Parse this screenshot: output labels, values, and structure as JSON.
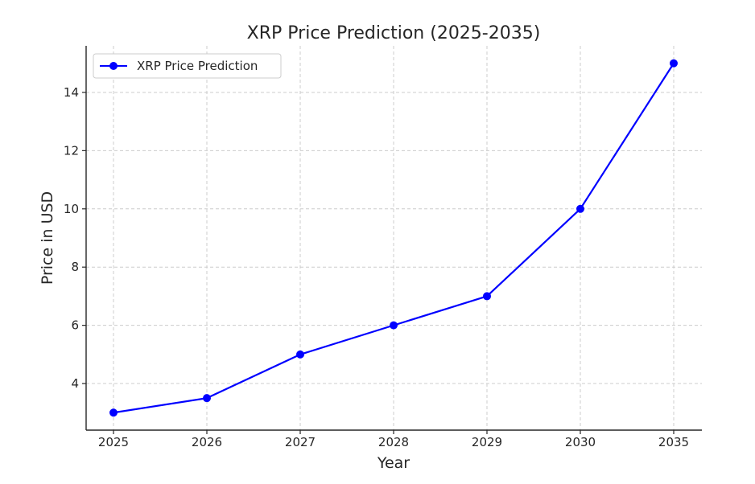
{
  "chart_data": {
    "type": "line",
    "title": "XRP Price Prediction (2025-2035)",
    "xlabel": "Year",
    "ylabel": "Price in USD",
    "categories": [
      "2025",
      "2026",
      "2027",
      "2028",
      "2029",
      "2030",
      "2035"
    ],
    "series": [
      {
        "name": "XRP Price Prediction",
        "values": [
          3,
          3.5,
          5,
          6,
          7,
          10,
          15
        ],
        "color": "#0000ff",
        "marker": "circle"
      }
    ],
    "ylim": [
      2.4,
      15.6
    ],
    "yticks": [
      4,
      6,
      8,
      10,
      12,
      14
    ],
    "grid": true,
    "legend_position": "top-left"
  }
}
